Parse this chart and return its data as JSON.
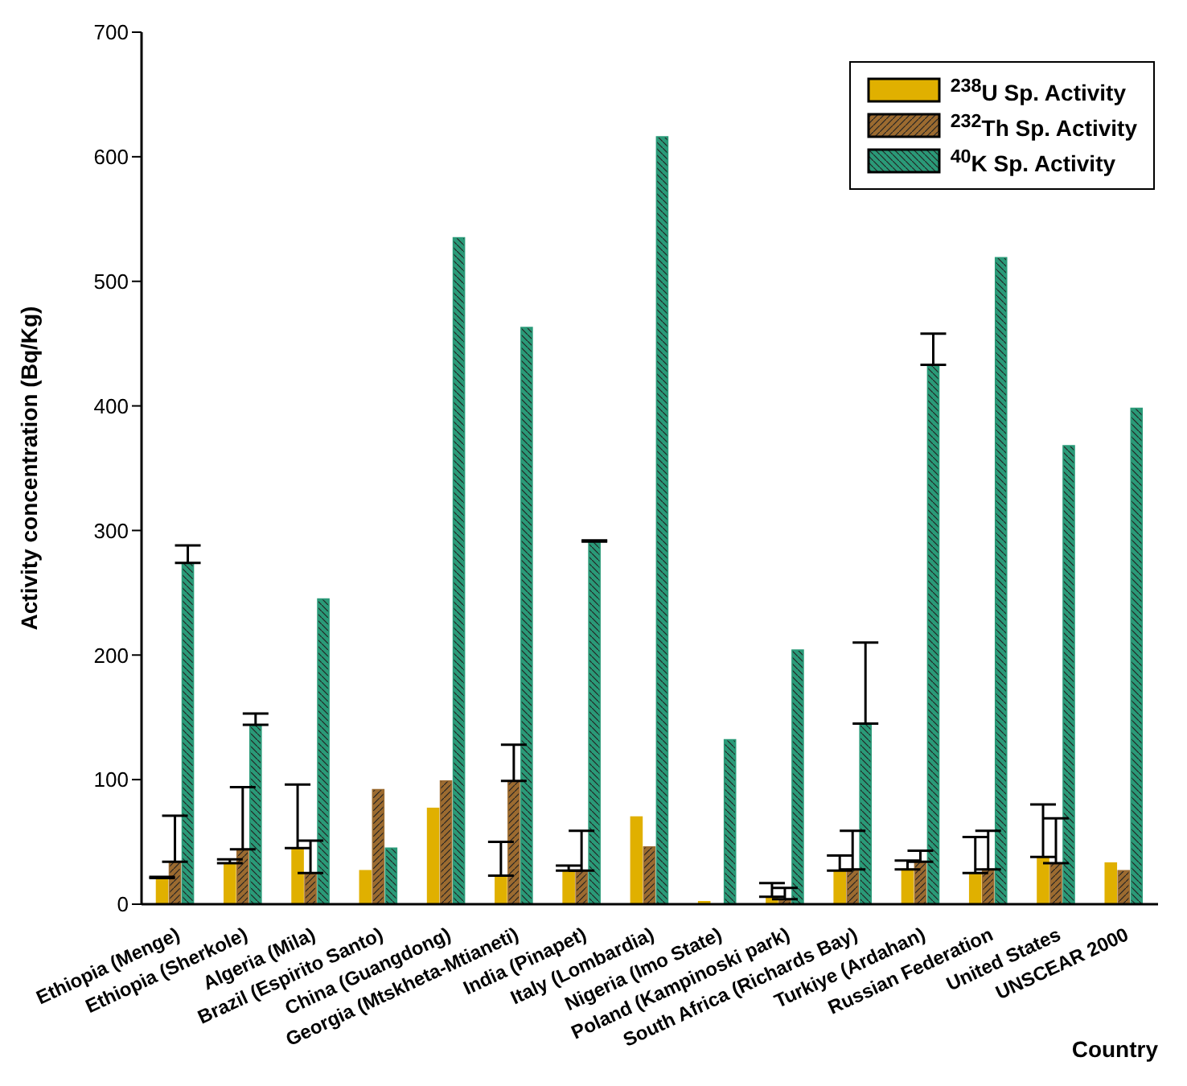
{
  "chart_data": {
    "type": "bar",
    "xlabel": "Country",
    "ylabel": "Activity concentration (Bq/Kg)",
    "categories": [
      "Ethiopia (Menge)",
      "Ethiopia (Sherkole)",
      "Algeria (Mila)",
      "Brazil (Espirito Santo)",
      "China (Guangdong)",
      "Georgia (Mtskheta-Mtianeti)",
      "India (Pinapet)",
      "Italy (Lombardia)",
      "Nigeria (Imo State)",
      "Poland (Kampinoski park)",
      "South Africa (Richards Bay)",
      "Turkiye (Ardahan)",
      "Russian Federation",
      "United States",
      "UNSCEAR 2000"
    ],
    "series": [
      {
        "name": "$^{238}$U Sp. Activity",
        "color": "#e0b000",
        "values": [
          21,
          33,
          45,
          27,
          77,
          23,
          27,
          70,
          2,
          6,
          27,
          28,
          25,
          38,
          33
        ],
        "errors": [
          [
            21,
            22
          ],
          [
            33,
            36
          ],
          [
            45,
            96
          ],
          null,
          null,
          [
            23,
            50
          ],
          [
            27,
            31
          ],
          null,
          null,
          [
            6,
            17
          ],
          [
            27,
            39
          ],
          [
            28,
            35
          ],
          [
            25,
            54
          ],
          [
            38,
            80
          ],
          null
        ]
      },
      {
        "name": "$^{232}$Th Sp. Activity",
        "color": "#9c6b30",
        "values": [
          34,
          44,
          25,
          92,
          99,
          99,
          27,
          46,
          0,
          4,
          28,
          34,
          28,
          33,
          27
        ],
        "errors": [
          [
            34,
            71
          ],
          [
            44,
            94
          ],
          [
            25,
            51
          ],
          null,
          null,
          [
            99,
            128
          ],
          [
            27,
            59
          ],
          null,
          null,
          [
            4,
            13
          ],
          [
            28,
            59
          ],
          [
            34,
            43
          ],
          [
            28,
            59
          ],
          [
            33,
            69
          ],
          null
        ]
      },
      {
        "name": "$^{40}$K Sp. Activity",
        "color": "#2a9a78",
        "values": [
          274,
          144,
          245,
          45,
          535,
          463,
          291,
          616,
          132,
          204,
          145,
          433,
          519,
          368,
          398
        ],
        "errors": [
          [
            274,
            288
          ],
          [
            144,
            153
          ],
          null,
          null,
          null,
          null,
          [
            291,
            292
          ],
          null,
          null,
          null,
          [
            145,
            210
          ],
          [
            433,
            458
          ],
          null,
          null,
          null
        ]
      }
    ],
    "ylim": [
      0,
      700
    ],
    "yticks": [
      0,
      100,
      200,
      300,
      400,
      500,
      600,
      700
    ],
    "grid": false,
    "legend": "top right"
  }
}
